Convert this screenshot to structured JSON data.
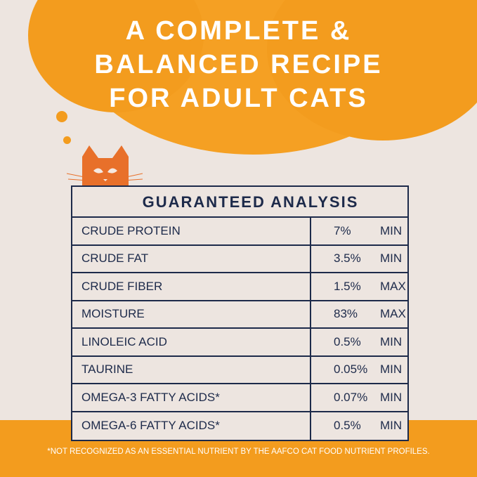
{
  "headline": [
    "A COMPLETE &",
    "BALANCED RECIPE",
    "FOR ADULT CATS"
  ],
  "table": {
    "title": "GUARANTEED ANALYSIS",
    "rows": [
      {
        "name": "CRUDE PROTEIN",
        "value": "7%",
        "qualifier": "MIN"
      },
      {
        "name": "CRUDE FAT",
        "value": "3.5%",
        "qualifier": "MIN"
      },
      {
        "name": "CRUDE FIBER",
        "value": "1.5%",
        "qualifier": "MAX"
      },
      {
        "name": "MOISTURE",
        "value": "83%",
        "qualifier": "MAX"
      },
      {
        "name": "LINOLEIC ACID",
        "value": "0.5%",
        "qualifier": "MIN"
      },
      {
        "name": "TAURINE",
        "value": "0.05%",
        "qualifier": "MIN"
      },
      {
        "name": "OMEGA-3 FATTY ACIDS*",
        "value": "0.07%",
        "qualifier": "MIN"
      },
      {
        "name": "OMEGA-6 FATTY ACIDS*",
        "value": "0.5%",
        "qualifier": "MIN"
      }
    ]
  },
  "footnote": "*NOT RECOGNIZED AS AN ESSENTIAL NUTRIENT BY THE AAFCO CAT FOOD NUTRIENT PROFILES.",
  "colors": {
    "orange": "#f39c1e",
    "cat": "#e8702a",
    "navy": "#1d2a4a",
    "background": "#ede5e0"
  }
}
